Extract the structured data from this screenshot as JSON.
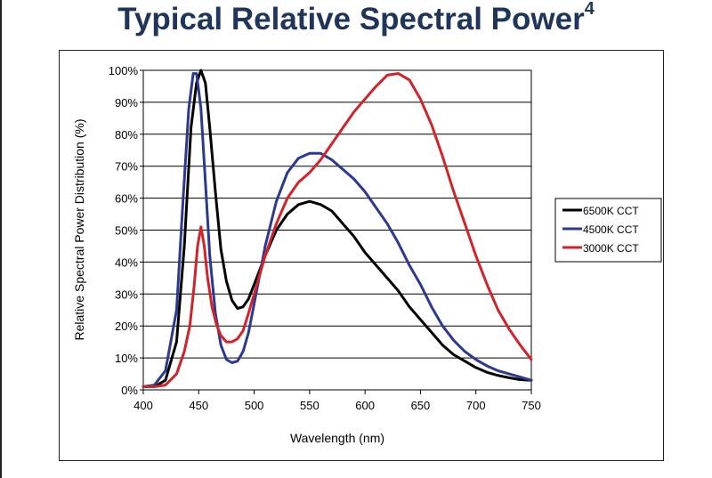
{
  "title": "Typical Relative Spectral Power",
  "title_superscript": "4",
  "chart_data": {
    "type": "line",
    "xlabel": "Wavelength (nm)",
    "ylabel": "Relative Spectral Power Distribution (%)",
    "xlim": [
      400,
      750
    ],
    "ylim": [
      0,
      100
    ],
    "xticks": [
      400,
      450,
      500,
      550,
      600,
      650,
      700,
      750
    ],
    "yticks": [
      0,
      10,
      20,
      30,
      40,
      50,
      60,
      70,
      80,
      90,
      100
    ],
    "ytick_labels": [
      "0%",
      "10%",
      "20%",
      "30%",
      "40%",
      "50%",
      "60%",
      "70%",
      "80%",
      "90%",
      "100%"
    ],
    "grid": "horizontal",
    "legend_position": "right",
    "series": [
      {
        "name": "6500K CCT",
        "color": "#000000",
        "points": [
          [
            400,
            1
          ],
          [
            410,
            1
          ],
          [
            420,
            3
          ],
          [
            430,
            15
          ],
          [
            437,
            45
          ],
          [
            443,
            82
          ],
          [
            448,
            96
          ],
          [
            452,
            100
          ],
          [
            456,
            96
          ],
          [
            460,
            82
          ],
          [
            465,
            62
          ],
          [
            470,
            44
          ],
          [
            475,
            34
          ],
          [
            480,
            28
          ],
          [
            485,
            25.5
          ],
          [
            490,
            26
          ],
          [
            495,
            28.5
          ],
          [
            500,
            33
          ],
          [
            510,
            42
          ],
          [
            520,
            50
          ],
          [
            530,
            55
          ],
          [
            540,
            58
          ],
          [
            550,
            59
          ],
          [
            560,
            58
          ],
          [
            570,
            56
          ],
          [
            580,
            52
          ],
          [
            590,
            48
          ],
          [
            600,
            43
          ],
          [
            610,
            39
          ],
          [
            620,
            35
          ],
          [
            630,
            31
          ],
          [
            640,
            26
          ],
          [
            650,
            22
          ],
          [
            660,
            18
          ],
          [
            670,
            14
          ],
          [
            680,
            11
          ],
          [
            690,
            9
          ],
          [
            700,
            7
          ],
          [
            710,
            5.5
          ],
          [
            720,
            4.5
          ],
          [
            730,
            3.8
          ],
          [
            740,
            3.2
          ],
          [
            750,
            3
          ]
        ]
      },
      {
        "name": "4500K CCT",
        "color": "#2b3990",
        "points": [
          [
            400,
            1
          ],
          [
            410,
            1.5
          ],
          [
            420,
            6
          ],
          [
            430,
            25
          ],
          [
            436,
            60
          ],
          [
            441,
            88
          ],
          [
            445,
            99
          ],
          [
            448,
            99
          ],
          [
            452,
            88
          ],
          [
            456,
            65
          ],
          [
            460,
            42
          ],
          [
            465,
            24
          ],
          [
            470,
            14
          ],
          [
            475,
            9.5
          ],
          [
            480,
            8.5
          ],
          [
            485,
            9
          ],
          [
            490,
            12
          ],
          [
            495,
            18
          ],
          [
            500,
            27
          ],
          [
            510,
            45
          ],
          [
            520,
            59
          ],
          [
            530,
            68
          ],
          [
            540,
            72.5
          ],
          [
            550,
            74
          ],
          [
            560,
            74
          ],
          [
            570,
            72
          ],
          [
            580,
            69
          ],
          [
            590,
            66
          ],
          [
            600,
            62
          ],
          [
            610,
            57
          ],
          [
            620,
            52
          ],
          [
            630,
            46
          ],
          [
            640,
            39
          ],
          [
            650,
            33
          ],
          [
            660,
            26
          ],
          [
            670,
            20
          ],
          [
            680,
            15.5
          ],
          [
            690,
            12
          ],
          [
            700,
            9.5
          ],
          [
            710,
            7.5
          ],
          [
            720,
            6
          ],
          [
            730,
            5
          ],
          [
            740,
            4
          ],
          [
            750,
            3
          ]
        ]
      },
      {
        "name": "3000K CCT",
        "color": "#d2232a",
        "points": [
          [
            400,
            1
          ],
          [
            410,
            1
          ],
          [
            420,
            1.5
          ],
          [
            430,
            5
          ],
          [
            437,
            12
          ],
          [
            442,
            20
          ],
          [
            446,
            33
          ],
          [
            449,
            45
          ],
          [
            452,
            51
          ],
          [
            455,
            45
          ],
          [
            458,
            35
          ],
          [
            462,
            26
          ],
          [
            466,
            20.5
          ],
          [
            470,
            17
          ],
          [
            475,
            15
          ],
          [
            480,
            15
          ],
          [
            485,
            16
          ],
          [
            490,
            18.5
          ],
          [
            495,
            24
          ],
          [
            500,
            30
          ],
          [
            510,
            42
          ],
          [
            520,
            52
          ],
          [
            530,
            60
          ],
          [
            540,
            65
          ],
          [
            550,
            68
          ],
          [
            560,
            72
          ],
          [
            570,
            77
          ],
          [
            580,
            82
          ],
          [
            590,
            87
          ],
          [
            600,
            91
          ],
          [
            610,
            95
          ],
          [
            620,
            98.5
          ],
          [
            630,
            99
          ],
          [
            640,
            97
          ],
          [
            650,
            91
          ],
          [
            660,
            83
          ],
          [
            670,
            73
          ],
          [
            680,
            62
          ],
          [
            690,
            52
          ],
          [
            700,
            42
          ],
          [
            710,
            33
          ],
          [
            720,
            25
          ],
          [
            730,
            19
          ],
          [
            740,
            14
          ],
          [
            750,
            9.5
          ]
        ]
      }
    ]
  }
}
